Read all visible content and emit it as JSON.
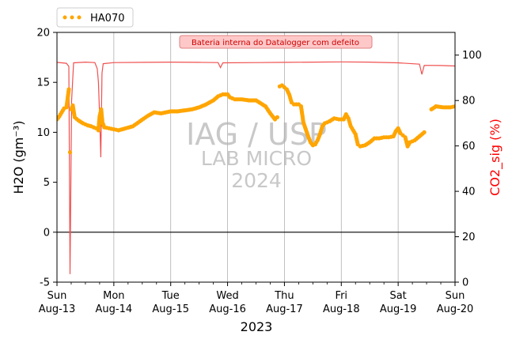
{
  "chart_data": {
    "type": "line",
    "x_range": [
      "2023-08-13T00:00",
      "2023-08-20T00:00"
    ],
    "x_ticks": [
      {
        "date": "2023-08-13",
        "line1": "Sun",
        "line2": "Aug-13"
      },
      {
        "date": "2023-08-14",
        "line1": "Mon",
        "line2": "Aug-14"
      },
      {
        "date": "2023-08-15",
        "line1": "Tue",
        "line2": "Aug-15"
      },
      {
        "date": "2023-08-16",
        "line1": "Wed",
        "line2": "Aug-16"
      },
      {
        "date": "2023-08-17",
        "line1": "Thu",
        "line2": "Aug-17"
      },
      {
        "date": "2023-08-18",
        "line1": "Fri",
        "line2": "Aug-18"
      },
      {
        "date": "2023-08-19",
        "line1": "Sat",
        "line2": "Aug-19"
      },
      {
        "date": "2023-08-20",
        "line1": "Sun",
        "line2": "Aug-20"
      }
    ],
    "xlabel": "2023",
    "y_left": {
      "label": "H2O (gm⁻³)",
      "range": [
        -5,
        20
      ],
      "ticks": [
        -5,
        0,
        5,
        10,
        15,
        20
      ]
    },
    "y_right": {
      "label": "CO2_sig (%)",
      "range": [
        0,
        110
      ],
      "ticks": [
        0,
        20,
        40,
        60,
        80,
        100
      ],
      "color": "#ff0000"
    },
    "grid": "vertical",
    "zero_line": 0,
    "legend": {
      "placement": "top-left-above",
      "entries": [
        "HA070"
      ]
    },
    "annotation": {
      "text": "Bateria interna do Datalogger com defeito",
      "color": "#cc0000",
      "background": "#ffc8c8"
    },
    "watermark": {
      "line1": "IAG / USP",
      "line2": "LAB MICRO",
      "line3": "2024"
    },
    "series": [
      {
        "name": "HA070",
        "axis": "left",
        "style": "dotted-markers",
        "color": "#ffa500",
        "points": [
          [
            "2023-08-13T00:00",
            11.3
          ],
          [
            "2023-08-13T01:00",
            11.6
          ],
          [
            "2023-08-13T02:00",
            12.0
          ],
          [
            "2023-08-13T03:00",
            12.4
          ],
          [
            "2023-08-13T04:00",
            12.5
          ],
          [
            "2023-08-13T05:00",
            14.3
          ],
          [
            "2023-08-13T05:30",
            8.0
          ],
          [
            "2023-08-13T06:00",
            12.3
          ],
          [
            "2023-08-13T06:40",
            12.7
          ],
          [
            "2023-08-13T07:30",
            11.5
          ],
          [
            "2023-08-13T09:00",
            11.2
          ],
          [
            "2023-08-13T11:00",
            10.9
          ],
          [
            "2023-08-13T13:00",
            10.7
          ],
          [
            "2023-08-13T14:30",
            10.6
          ],
          [
            "2023-08-13T15:30",
            10.5
          ],
          [
            "2023-08-13T16:30",
            10.4
          ],
          [
            "2023-08-13T17:30",
            10.2
          ],
          [
            "2023-08-13T18:00",
            11.6
          ],
          [
            "2023-08-13T18:40",
            12.3
          ],
          [
            "2023-08-13T19:10",
            11.0
          ],
          [
            "2023-08-13T20:00",
            10.5
          ],
          [
            "2023-08-13T22:00",
            10.4
          ],
          [
            "2023-08-14T00:00",
            10.3
          ],
          [
            "2023-08-14T02:00",
            10.2
          ],
          [
            "2023-08-14T05:00",
            10.4
          ],
          [
            "2023-08-14T08:00",
            10.6
          ],
          [
            "2023-08-14T11:00",
            11.1
          ],
          [
            "2023-08-14T14:00",
            11.6
          ],
          [
            "2023-08-14T17:00",
            12.0
          ],
          [
            "2023-08-14T20:00",
            11.9
          ],
          [
            "2023-08-15T00:00",
            12.1
          ],
          [
            "2023-08-15T03:00",
            12.1
          ],
          [
            "2023-08-15T06:00",
            12.2
          ],
          [
            "2023-08-15T09:00",
            12.3
          ],
          [
            "2023-08-15T12:00",
            12.5
          ],
          [
            "2023-08-15T15:00",
            12.8
          ],
          [
            "2023-08-15T18:00",
            13.2
          ],
          [
            "2023-08-15T20:00",
            13.6
          ],
          [
            "2023-08-15T22:00",
            13.8
          ],
          [
            "2023-08-16T00:00",
            13.8
          ],
          [
            "2023-08-16T01:00",
            13.5
          ],
          [
            "2023-08-16T03:00",
            13.3
          ],
          [
            "2023-08-16T06:00",
            13.3
          ],
          [
            "2023-08-16T09:00",
            13.2
          ],
          [
            "2023-08-16T12:00",
            13.2
          ],
          [
            "2023-08-16T14:00",
            12.9
          ],
          [
            "2023-08-16T16:00",
            12.6
          ],
          [
            "2023-08-16T18:00",
            11.9
          ],
          [
            "2023-08-16T19:00",
            11.6
          ],
          [
            "2023-08-16T20:00",
            11.3
          ],
          [
            "2023-08-16T21:00",
            11.5
          ],
          [
            "2023-08-16T22:00",
            14.6
          ],
          [
            "2023-08-16T23:00",
            14.7
          ],
          [
            "2023-08-17T00:00",
            14.5
          ],
          [
            "2023-08-17T01:00",
            14.3
          ],
          [
            "2023-08-17T02:00",
            13.8
          ],
          [
            "2023-08-17T03:00",
            13.0
          ],
          [
            "2023-08-17T04:00",
            12.8
          ],
          [
            "2023-08-17T06:00",
            12.8
          ],
          [
            "2023-08-17T07:00",
            12.6
          ],
          [
            "2023-08-17T08:00",
            11.0
          ],
          [
            "2023-08-17T09:00",
            10.3
          ],
          [
            "2023-08-17T10:00",
            9.6
          ],
          [
            "2023-08-17T11:00",
            9.0
          ],
          [
            "2023-08-17T12:00",
            8.7
          ],
          [
            "2023-08-17T13:00",
            8.8
          ],
          [
            "2023-08-17T14:00",
            9.2
          ],
          [
            "2023-08-17T15:00",
            9.8
          ],
          [
            "2023-08-17T16:00",
            10.6
          ],
          [
            "2023-08-17T17:00",
            10.9
          ],
          [
            "2023-08-17T19:00",
            11.1
          ],
          [
            "2023-08-17T21:00",
            11.4
          ],
          [
            "2023-08-17T23:00",
            11.3
          ],
          [
            "2023-08-18T01:00",
            11.3
          ],
          [
            "2023-08-18T02:00",
            11.8
          ],
          [
            "2023-08-18T03:00",
            11.4
          ],
          [
            "2023-08-18T04:00",
            10.6
          ],
          [
            "2023-08-18T05:00",
            10.2
          ],
          [
            "2023-08-18T06:00",
            9.8
          ],
          [
            "2023-08-18T07:00",
            8.8
          ],
          [
            "2023-08-18T08:00",
            8.6
          ],
          [
            "2023-08-18T10:00",
            8.7
          ],
          [
            "2023-08-18T12:00",
            9.0
          ],
          [
            "2023-08-18T14:00",
            9.4
          ],
          [
            "2023-08-18T16:00",
            9.4
          ],
          [
            "2023-08-18T18:00",
            9.5
          ],
          [
            "2023-08-18T20:00",
            9.5
          ],
          [
            "2023-08-18T22:00",
            9.6
          ],
          [
            "2023-08-18T23:00",
            10.1
          ],
          [
            "2023-08-19T00:00",
            10.4
          ],
          [
            "2023-08-19T01:00",
            9.9
          ],
          [
            "2023-08-19T02:00",
            9.7
          ],
          [
            "2023-08-19T03:00",
            9.5
          ],
          [
            "2023-08-19T04:00",
            8.6
          ],
          [
            "2023-08-19T05:00",
            9.0
          ],
          [
            "2023-08-19T07:00",
            9.2
          ],
          [
            "2023-08-19T09:00",
            9.6
          ],
          [
            "2023-08-19T11:00",
            10.0
          ],
          [
            "2023-08-19T14:00",
            12.3
          ],
          [
            "2023-08-19T16:00",
            12.6
          ],
          [
            "2023-08-19T19:00",
            12.5
          ],
          [
            "2023-08-19T22:00",
            12.5
          ],
          [
            "2023-08-20T00:00",
            12.6
          ]
        ]
      },
      {
        "name": "CO2_sig",
        "axis": "right",
        "style": "line",
        "color": "#f05050",
        "points": [
          [
            "2023-08-13T00:00",
            96.8
          ],
          [
            "2023-08-13T04:00",
            96.4
          ],
          [
            "2023-08-13T05:00",
            95.0
          ],
          [
            "2023-08-13T05:30",
            3.5
          ],
          [
            "2023-08-13T06:10",
            80.0
          ],
          [
            "2023-08-13T07:00",
            96.6
          ],
          [
            "2023-08-13T12:00",
            96.9
          ],
          [
            "2023-08-13T16:00",
            96.7
          ],
          [
            "2023-08-13T17:00",
            94.0
          ],
          [
            "2023-08-13T17:30",
            88.0
          ],
          [
            "2023-08-13T18:00",
            73.0
          ],
          [
            "2023-08-13T18:30",
            55.0
          ],
          [
            "2023-08-13T19:00",
            92.0
          ],
          [
            "2023-08-13T19:30",
            96.2
          ],
          [
            "2023-08-14T00:00",
            96.7
          ],
          [
            "2023-08-14T12:00",
            96.8
          ],
          [
            "2023-08-15T00:00",
            96.9
          ],
          [
            "2023-08-15T12:00",
            96.8
          ],
          [
            "2023-08-15T20:00",
            96.7
          ],
          [
            "2023-08-15T21:00",
            94.5
          ],
          [
            "2023-08-15T22:00",
            96.6
          ],
          [
            "2023-08-16T12:00",
            96.7
          ],
          [
            "2023-08-17T00:00",
            96.8
          ],
          [
            "2023-08-17T12:00",
            96.9
          ],
          [
            "2023-08-18T00:00",
            97.0
          ],
          [
            "2023-08-18T12:00",
            96.9
          ],
          [
            "2023-08-19T00:00",
            96.6
          ],
          [
            "2023-08-19T09:00",
            96.0
          ],
          [
            "2023-08-19T10:00",
            91.5
          ],
          [
            "2023-08-19T11:00",
            95.5
          ],
          [
            "2023-08-19T18:00",
            95.4
          ],
          [
            "2023-08-20T00:00",
            95.2
          ]
        ]
      }
    ]
  }
}
